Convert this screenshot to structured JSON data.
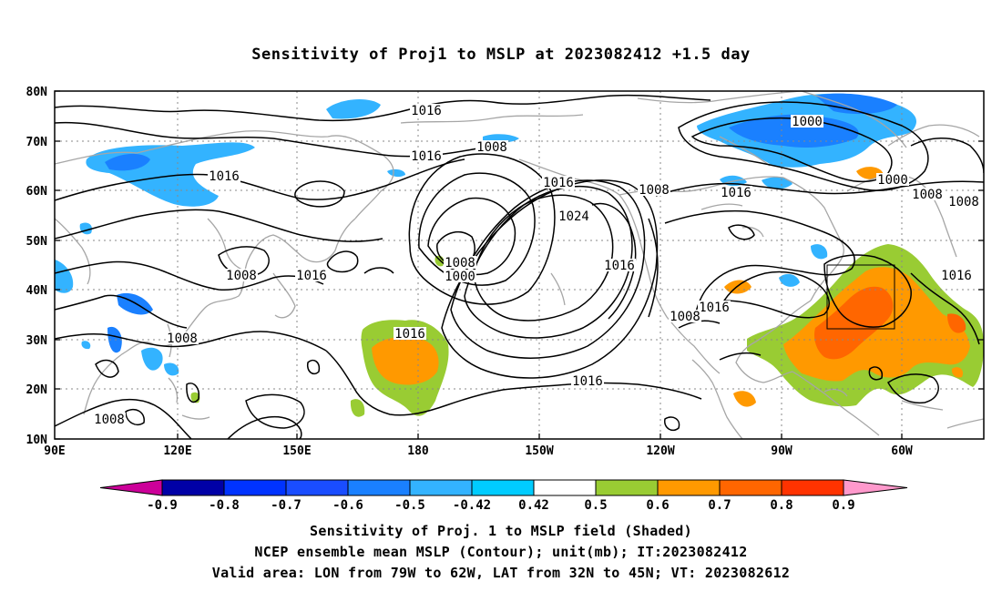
{
  "title": "Sensitivity of Proj1 to MSLP at 2023082412 +1.5 day",
  "map": {
    "lat_labels": [
      "80N",
      "70N",
      "60N",
      "50N",
      "40N",
      "30N",
      "20N",
      "10N"
    ],
    "lon_labels": [
      "90E",
      "120E",
      "150E",
      "180",
      "150W",
      "120W",
      "90W",
      "60W"
    ],
    "grid": "dotted",
    "valid_area_box": {
      "lon": [
        "79W",
        "62W"
      ],
      "lat": [
        "32N",
        "45N"
      ]
    },
    "contour_labels": [
      {
        "text": "1016"
      },
      {
        "text": "1016"
      },
      {
        "text": "1008"
      },
      {
        "text": "1016"
      },
      {
        "text": "1016"
      },
      {
        "text": "1024"
      },
      {
        "text": "1008"
      },
      {
        "text": "1016"
      },
      {
        "text": "1000"
      },
      {
        "text": "1000"
      },
      {
        "text": "1008"
      },
      {
        "text": "1016"
      },
      {
        "text": "1008"
      },
      {
        "text": "1016"
      },
      {
        "text": "1000"
      },
      {
        "text": "1008"
      },
      {
        "text": "1016"
      },
      {
        "text": "1016"
      },
      {
        "text": "1008"
      },
      {
        "text": "1016"
      },
      {
        "text": "1016"
      },
      {
        "text": "1008"
      },
      {
        "text": "1008"
      },
      {
        "text": "1008"
      }
    ]
  },
  "colorbar": {
    "labels": [
      "-0.9",
      "-0.8",
      "-0.7",
      "-0.6",
      "-0.5",
      "-0.42",
      "0.42",
      "0.5",
      "0.6",
      "0.7",
      "0.8",
      "0.9"
    ],
    "colors": [
      "#0000a6",
      "#0033ff",
      "#1a4dff",
      "#1a80ff",
      "#33b3ff",
      "#00ccff",
      "#ffffff",
      "#99cc33",
      "#ff9900",
      "#ff6600",
      "#ff3300",
      "#ff0000",
      "#ff99cc"
    ],
    "low_end_color": "#cc0099",
    "high_end_color": "#ff99cc"
  },
  "footer": {
    "line1": "Sensitivity of Proj. 1 to MSLP field (Shaded)",
    "line2": "NCEP ensemble mean MSLP (Contour); unit(mb); IT:2023082412",
    "line3": "Valid area: LON from 79W to 62W, LAT from 32N to 45N; VT: 2023082612"
  }
}
